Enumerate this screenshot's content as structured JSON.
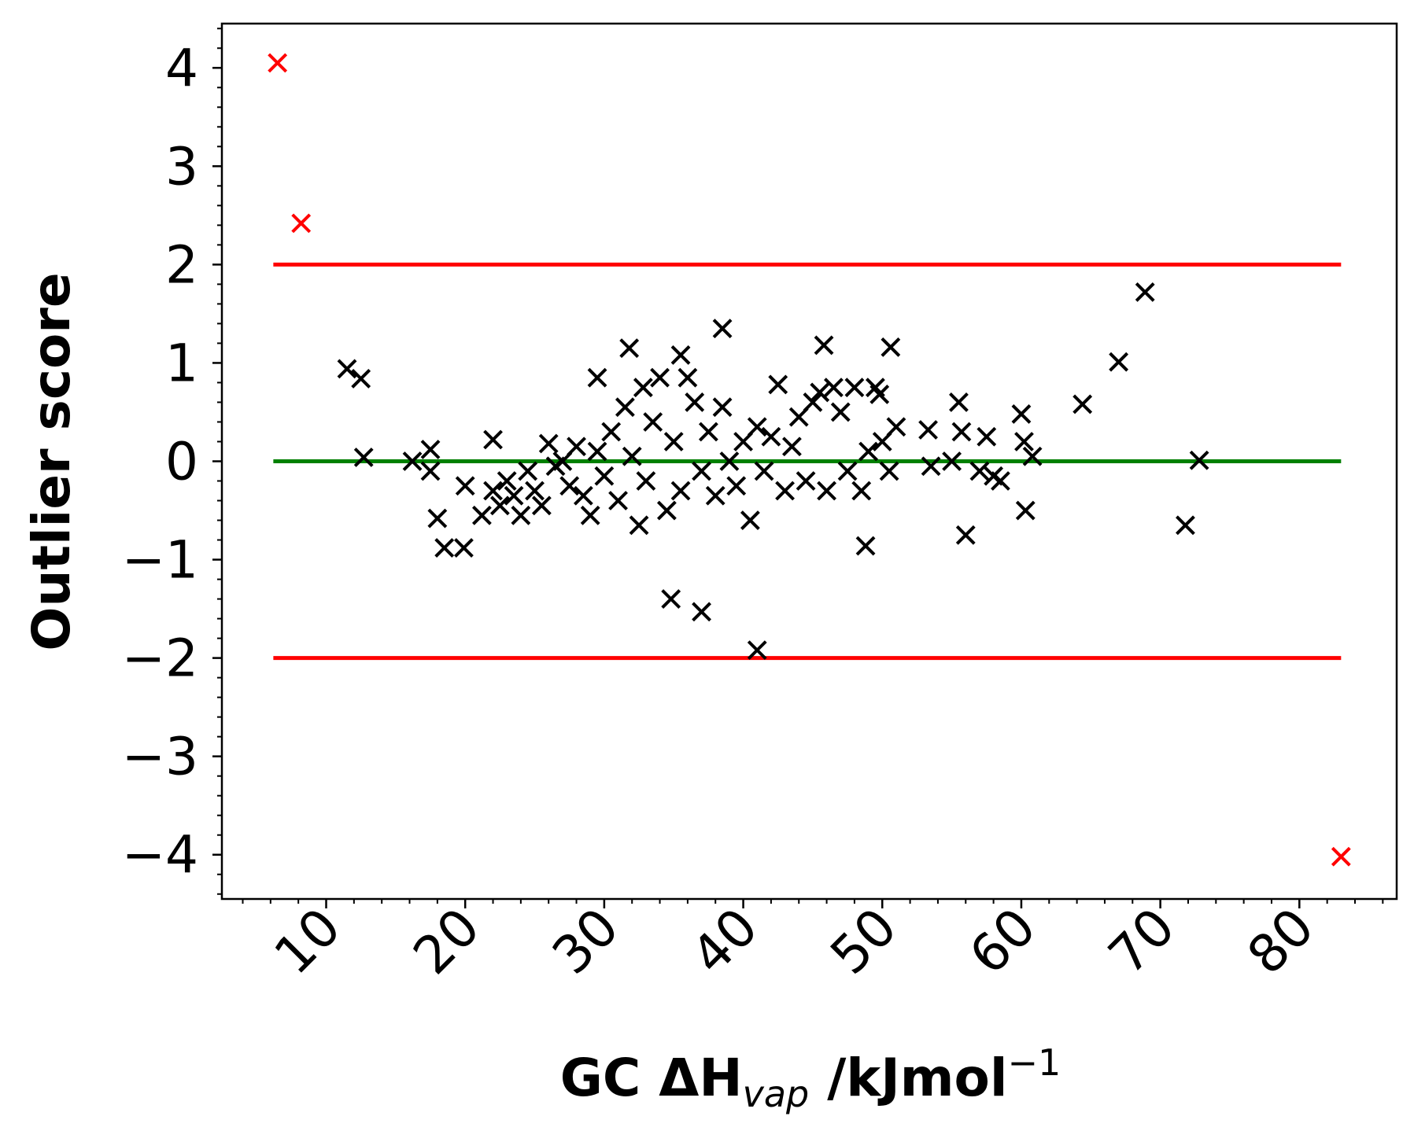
{
  "chart_data": {
    "type": "scatter",
    "title": "",
    "xlabel": {
      "main": "GC ΔH",
      "sub": "vap",
      "unit": " /kJmol",
      "sup": "−1"
    },
    "ylabel": "Outlier score",
    "xlim": [
      2.5,
      87
    ],
    "ylim": [
      -4.45,
      4.45
    ],
    "x_ticks": [
      10,
      20,
      30,
      40,
      50,
      60,
      70,
      80
    ],
    "y_ticks": [
      4,
      3,
      2,
      1,
      0,
      -1,
      -2,
      -3,
      -4
    ],
    "y_tick_labels": [
      "4",
      "3",
      "2",
      "1",
      "0",
      "−1",
      "−2",
      "−3",
      "−4"
    ],
    "x_tick_rotation": 45,
    "grid": false,
    "reference_lines": [
      {
        "name": "upper-threshold",
        "y": 2,
        "x_range": [
          6.2,
          83
        ],
        "color": "#ff0000"
      },
      {
        "name": "lower-threshold",
        "y": -2,
        "x_range": [
          6.2,
          83
        ],
        "color": "#ff0000"
      },
      {
        "name": "zero-line",
        "y": 0,
        "x_range": [
          6.2,
          83
        ],
        "color": "#008000"
      }
    ],
    "series": [
      {
        "color": "#000000",
        "marker": "x",
        "points": [
          [
            11.5,
            0.94
          ],
          [
            12.5,
            0.84
          ],
          [
            12.7,
            0.04
          ],
          [
            16.2,
            0.0
          ],
          [
            17.5,
            0.12
          ],
          [
            17.5,
            -0.1
          ],
          [
            18.0,
            -0.58
          ],
          [
            18.5,
            -0.88
          ],
          [
            19.9,
            -0.88
          ],
          [
            20.0,
            -0.25
          ],
          [
            21.2,
            -0.55
          ],
          [
            22.0,
            0.22
          ],
          [
            22.0,
            -0.3
          ],
          [
            22.5,
            -0.45
          ],
          [
            23.0,
            -0.2
          ],
          [
            23.5,
            -0.35
          ],
          [
            24.0,
            -0.55
          ],
          [
            24.5,
            -0.1
          ],
          [
            25.0,
            -0.3
          ],
          [
            25.5,
            -0.45
          ],
          [
            26.0,
            0.18
          ],
          [
            26.5,
            -0.05
          ],
          [
            27.0,
            0.0
          ],
          [
            27.5,
            -0.25
          ],
          [
            28.0,
            0.15
          ],
          [
            28.5,
            -0.35
          ],
          [
            29.0,
            -0.55
          ],
          [
            29.5,
            0.85
          ],
          [
            29.5,
            0.1
          ],
          [
            30.0,
            -0.15
          ],
          [
            30.5,
            0.3
          ],
          [
            31.0,
            -0.4
          ],
          [
            31.5,
            0.55
          ],
          [
            31.8,
            1.15
          ],
          [
            32.0,
            0.05
          ],
          [
            32.5,
            -0.65
          ],
          [
            32.8,
            0.75
          ],
          [
            33.0,
            -0.2
          ],
          [
            33.5,
            0.4
          ],
          [
            34.0,
            0.85
          ],
          [
            34.5,
            -0.5
          ],
          [
            34.8,
            -1.4
          ],
          [
            35.0,
            0.2
          ],
          [
            35.5,
            1.08
          ],
          [
            35.5,
            -0.3
          ],
          [
            36.0,
            0.85
          ],
          [
            36.5,
            0.6
          ],
          [
            37.0,
            -1.53
          ],
          [
            37.0,
            -0.1
          ],
          [
            37.5,
            0.3
          ],
          [
            38.0,
            -0.35
          ],
          [
            38.5,
            1.35
          ],
          [
            38.5,
            0.55
          ],
          [
            39.0,
            0.0
          ],
          [
            39.5,
            -0.25
          ],
          [
            40.0,
            0.2
          ],
          [
            40.5,
            -0.6
          ],
          [
            41.0,
            -1.92
          ],
          [
            41.0,
            0.35
          ],
          [
            41.5,
            -0.1
          ],
          [
            42.0,
            0.25
          ],
          [
            42.5,
            0.78
          ],
          [
            43.0,
            -0.3
          ],
          [
            43.5,
            0.15
          ],
          [
            44.0,
            0.45
          ],
          [
            44.5,
            -0.2
          ],
          [
            45.0,
            0.6
          ],
          [
            45.5,
            0.7
          ],
          [
            45.8,
            1.18
          ],
          [
            46.0,
            -0.3
          ],
          [
            46.5,
            0.75
          ],
          [
            47.0,
            0.5
          ],
          [
            47.5,
            -0.1
          ],
          [
            48.0,
            0.75
          ],
          [
            48.5,
            -0.3
          ],
          [
            48.8,
            -0.86
          ],
          [
            49.0,
            0.1
          ],
          [
            49.5,
            0.75
          ],
          [
            49.8,
            0.68
          ],
          [
            50.0,
            0.2
          ],
          [
            50.5,
            -0.1
          ],
          [
            50.6,
            1.16
          ],
          [
            51.0,
            0.35
          ],
          [
            53.3,
            0.32
          ],
          [
            53.5,
            -0.05
          ],
          [
            55.0,
            0.0
          ],
          [
            55.5,
            0.6
          ],
          [
            55.7,
            0.3
          ],
          [
            56.0,
            -0.75
          ],
          [
            57.0,
            -0.1
          ],
          [
            57.5,
            0.25
          ],
          [
            58.0,
            -0.15
          ],
          [
            58.5,
            -0.2
          ],
          [
            60.0,
            0.48
          ],
          [
            60.2,
            0.2
          ],
          [
            60.3,
            -0.5
          ],
          [
            60.8,
            0.05
          ],
          [
            64.4,
            0.58
          ],
          [
            67.0,
            1.01
          ],
          [
            68.9,
            1.72
          ],
          [
            71.8,
            -0.65
          ],
          [
            72.8,
            0.01
          ]
        ]
      },
      {
        "color": "#ff0000",
        "marker": "x",
        "points": [
          [
            6.5,
            4.05
          ],
          [
            8.2,
            2.42
          ],
          [
            83.0,
            -4.02
          ]
        ]
      }
    ]
  }
}
